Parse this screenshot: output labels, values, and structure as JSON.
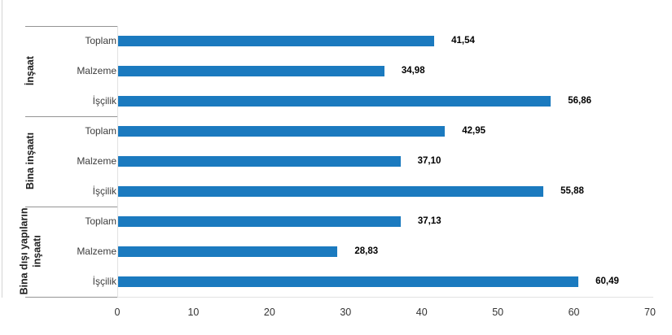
{
  "chart_data": {
    "type": "bar",
    "orientation": "horizontal",
    "title": "",
    "xlabel": "",
    "ylabel": "",
    "xlim": [
      0,
      70
    ],
    "x_ticks": [
      "0",
      "10",
      "20",
      "30",
      "40",
      "50",
      "60",
      "70"
    ],
    "grid": false,
    "legend": false,
    "bar_color": "#1b7abf",
    "groups": [
      {
        "label": "İnşaat",
        "items": [
          {
            "label": "Toplam",
            "value": 41.54,
            "display": "41,54"
          },
          {
            "label": "Malzeme",
            "value": 34.98,
            "display": "34,98"
          },
          {
            "label": "İşçilik",
            "value": 56.86,
            "display": "56,86"
          }
        ]
      },
      {
        "label": "Bina inşaatı",
        "items": [
          {
            "label": "Toplam",
            "value": 42.95,
            "display": "42,95"
          },
          {
            "label": "Malzeme",
            "value": 37.1,
            "display": "37,10"
          },
          {
            "label": "İşçilik",
            "value": 55.88,
            "display": "55,88"
          }
        ]
      },
      {
        "label": "Bina dışı yapıların inşaatı",
        "label_lines": [
          "Bina dışı yapıların",
          "inşaatı"
        ],
        "items": [
          {
            "label": "Toplam",
            "value": 37.13,
            "display": "37,13"
          },
          {
            "label": "Malzeme",
            "value": 28.83,
            "display": "28,83"
          },
          {
            "label": "İşçilik",
            "value": 60.49,
            "display": "60,49"
          }
        ]
      }
    ]
  }
}
